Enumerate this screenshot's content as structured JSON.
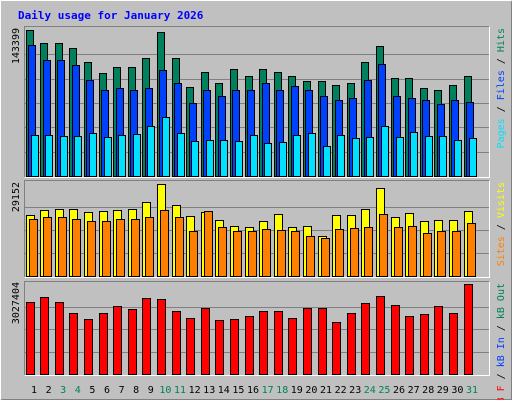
{
  "chart_data": [
    {
      "type": "bar",
      "title": "Daily usage for January 2026",
      "categories": [
        "1",
        "2",
        "3",
        "4",
        "5",
        "6",
        "7",
        "8",
        "9",
        "10",
        "11",
        "12",
        "13",
        "14",
        "15",
        "16",
        "17",
        "18",
        "19",
        "20",
        "21",
        "22",
        "23",
        "24",
        "25",
        "26",
        "27",
        "28",
        "29",
        "30",
        "31"
      ],
      "weekend_categories": [
        "3",
        "4",
        "10",
        "11",
        "17",
        "18",
        "24",
        "25",
        "31"
      ],
      "weekend_color": "#00805c",
      "category_color": "#000000",
      "ylim": [
        0,
        143399
      ],
      "yticks": [
        143399
      ],
      "series": [
        {
          "name": "Hits",
          "color": "#00805c",
          "values": [
            143399,
            130630,
            130630,
            125720,
            111970,
            101170,
            107060,
            107060,
            115900,
            141440,
            115900,
            87420,
            102150,
            91340,
            105090,
            98220,
            105090,
            102150,
            98220,
            93310,
            93310,
            89380,
            91340,
            111970,
            127690,
            96260,
            96260,
            86430,
            84470,
            89380,
            98220
          ]
        },
        {
          "name": "Files",
          "color": "#0040ff",
          "values": [
            128670,
            113940,
            113940,
            109020,
            94290,
            84470,
            86430,
            84470,
            86430,
            104110,
            91340,
            71700,
            84470,
            78580,
            84470,
            84470,
            91340,
            84470,
            88400,
            84470,
            78580,
            74650,
            76610,
            94290,
            110000,
            78580,
            76610,
            74650,
            70720,
            74650,
            72680
          ]
        },
        {
          "name": "Pages",
          "color": "#00e0ff",
          "values": [
            40270,
            40270,
            39290,
            39290,
            42230,
            38310,
            40270,
            41250,
            49110,
            57950,
            42230,
            34380,
            35360,
            35360,
            34380,
            40270,
            32410,
            33390,
            40270,
            42230,
            29470,
            40270,
            37320,
            38310,
            49110,
            38310,
            43220,
            39290,
            39290,
            35360,
            37320
          ]
        }
      ]
    },
    {
      "type": "bar",
      "ylim": [
        0,
        29152
      ],
      "yticks": [
        29152
      ],
      "series": [
        {
          "name": "Visits",
          "color": "#ffff00",
          "values": [
            19330,
            20920,
            21230,
            21230,
            20280,
            20600,
            20920,
            21230,
            23450,
            29152,
            22500,
            19010,
            20280,
            17750,
            15840,
            15530,
            17430,
            19650,
            15530,
            15840,
            12680,
            19330,
            19330,
            21230,
            27890,
            18700,
            19960,
            17430,
            17750,
            17750,
            20600
          ]
        },
        {
          "name": "Sites",
          "color": "#ff8000",
          "values": [
            18060,
            18700,
            18700,
            18060,
            17430,
            17430,
            18060,
            18060,
            18700,
            20920,
            18700,
            14260,
            20600,
            15530,
            14260,
            14260,
            14890,
            14580,
            14260,
            12680,
            12040,
            14890,
            15210,
            15530,
            19650,
            15530,
            15840,
            13630,
            14260,
            14260,
            16800
          ]
        }
      ]
    },
    {
      "type": "bar",
      "ylim": [
        0,
        3027404
      ],
      "yticks": [
        3027404
      ],
      "series": [
        {
          "name": "kB F",
          "color": "#ff0000",
          "values": [
            2421900,
            2590100,
            2421900,
            2051900,
            1850100,
            2051900,
            2287400,
            2186500,
            2556500,
            2522900,
            2119200,
            1883700,
            2220100,
            1816500,
            1850100,
            1951000,
            2119200,
            2119200,
            1883700,
            2220100,
            2220100,
            1749200,
            2051900,
            2388300,
            2623800,
            2321000,
            1951000,
            2018300,
            2287400,
            2051900,
            3027404
          ]
        }
      ],
      "legend_extra": [
        {
          "name": "kB In",
          "color": "#0040ff"
        },
        {
          "name": "kB Out",
          "color": "#00805c"
        }
      ]
    }
  ]
}
